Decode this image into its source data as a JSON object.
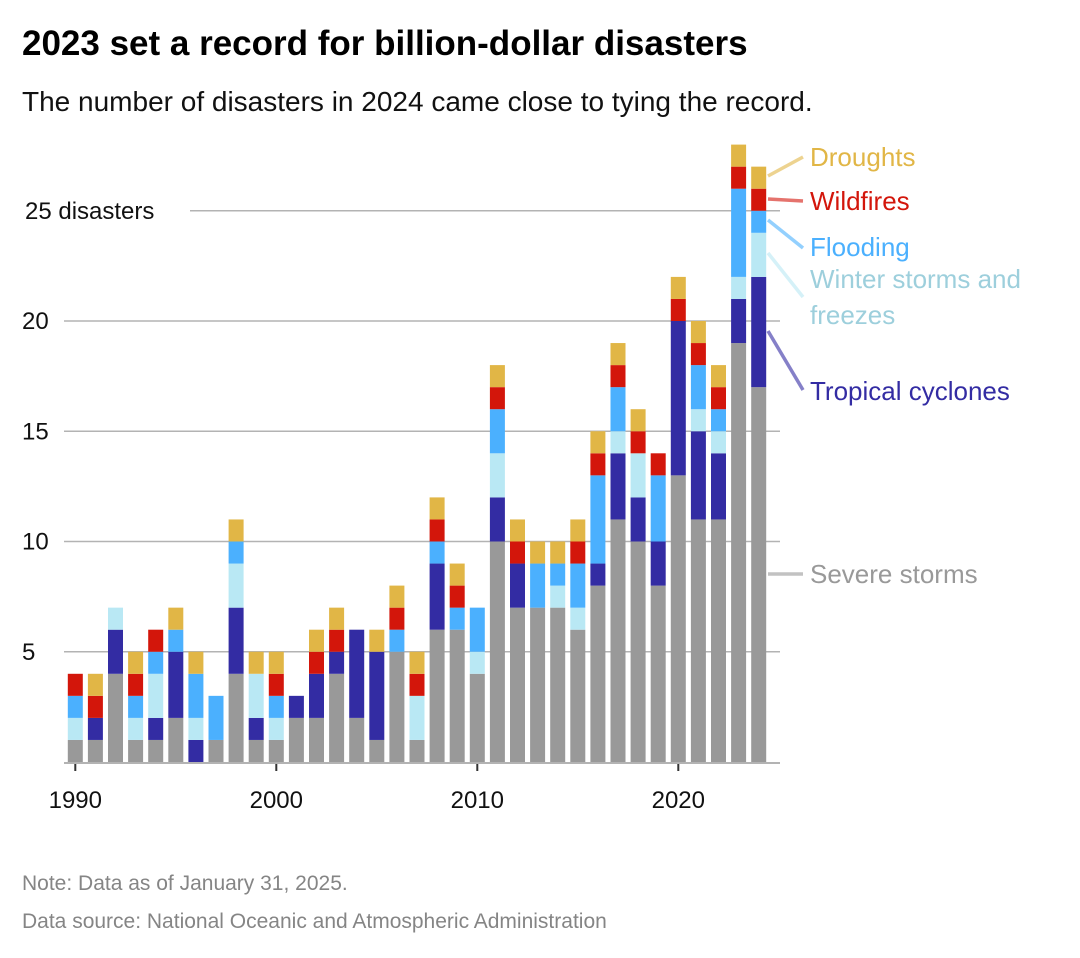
{
  "title": "2023 set a record for billion-dollar disasters",
  "subtitle": "The number of disasters in 2024 came close to tying the record.",
  "footer": {
    "note": "Note: Data as of January 31, 2025.",
    "source": "Data source: National Oceanic and Atmospheric Administration"
  },
  "chart_data": {
    "type": "bar",
    "stacked": true,
    "x": [
      1990,
      1991,
      1992,
      1993,
      1994,
      1995,
      1996,
      1997,
      1998,
      1999,
      2000,
      2001,
      2002,
      2003,
      2004,
      2005,
      2006,
      2007,
      2008,
      2009,
      2010,
      2011,
      2012,
      2013,
      2014,
      2015,
      2016,
      2017,
      2018,
      2019,
      2020,
      2021,
      2022,
      2023,
      2024
    ],
    "xticks": [
      "1990",
      "2000",
      "2010",
      "2020"
    ],
    "yticks": [
      {
        "value": 5,
        "label": "5"
      },
      {
        "value": 10,
        "label": "10"
      },
      {
        "value": 15,
        "label": "15"
      },
      {
        "value": 20,
        "label": "20"
      },
      {
        "value": 25,
        "label": "25 disasters"
      }
    ],
    "ylim": [
      0,
      28
    ],
    "grid": true,
    "legend_placement": "right, direct labels",
    "series": [
      {
        "name": "Severe storms",
        "color": "#999999",
        "label_color": "#999999",
        "values": [
          1,
          1,
          4,
          1,
          1,
          2,
          0,
          1,
          4,
          1,
          1,
          2,
          2,
          4,
          2,
          1,
          5,
          1,
          6,
          6,
          4,
          10,
          7,
          7,
          7,
          6,
          8,
          11,
          10,
          8,
          13,
          11,
          11,
          19,
          17
        ]
      },
      {
        "name": "Tropical cyclones",
        "color": "#332ca3",
        "label_color": "#332ca3",
        "values": [
          0,
          1,
          2,
          0,
          1,
          3,
          1,
          0,
          3,
          1,
          0,
          1,
          2,
          1,
          4,
          4,
          0,
          0,
          3,
          0,
          0,
          2,
          2,
          0,
          0,
          0,
          1,
          3,
          2,
          2,
          7,
          4,
          3,
          2,
          5
        ]
      },
      {
        "name": "Winter storms and freezes",
        "color": "#b9e8f4",
        "label_color": "#9dcfdc",
        "values": [
          1,
          0,
          1,
          1,
          2,
          0,
          1,
          0,
          2,
          2,
          1,
          0,
          0,
          0,
          0,
          0,
          0,
          2,
          0,
          0,
          1,
          2,
          0,
          0,
          1,
          1,
          0,
          1,
          2,
          0,
          0,
          1,
          1,
          1,
          2
        ]
      },
      {
        "name": "Flooding",
        "color": "#4bb0fe",
        "label_color": "#4bb0fe",
        "values": [
          1,
          0,
          0,
          1,
          1,
          1,
          2,
          2,
          1,
          0,
          1,
          0,
          0,
          0,
          0,
          0,
          1,
          0,
          1,
          1,
          2,
          2,
          0,
          2,
          1,
          2,
          4,
          2,
          0,
          3,
          0,
          2,
          1,
          4,
          1
        ]
      },
      {
        "name": "Wildfires",
        "color": "#d3160b",
        "label_color": "#d3160b",
        "values": [
          1,
          1,
          0,
          1,
          1,
          0,
          0,
          0,
          0,
          0,
          1,
          0,
          1,
          1,
          0,
          0,
          1,
          1,
          1,
          1,
          0,
          1,
          1,
          0,
          0,
          1,
          1,
          1,
          1,
          1,
          1,
          1,
          1,
          1,
          1
        ]
      },
      {
        "name": "Droughts",
        "color": "#e1b646",
        "label_color": "#e1b646",
        "values": [
          0,
          1,
          0,
          1,
          0,
          1,
          1,
          0,
          1,
          1,
          1,
          0,
          1,
          1,
          0,
          1,
          1,
          1,
          1,
          1,
          0,
          1,
          1,
          1,
          1,
          1,
          1,
          1,
          1,
          0,
          1,
          1,
          1,
          1,
          1
        ]
      }
    ]
  }
}
